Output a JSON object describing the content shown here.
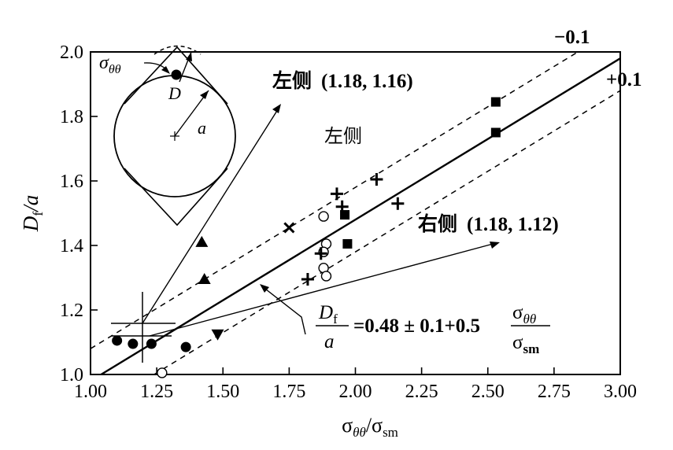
{
  "chart_data": {
    "type": "scatter",
    "xlabel": "σθθ/σsm",
    "ylabel": "Df/a",
    "xlim": [
      1.0,
      3.0
    ],
    "ylim": [
      1.0,
      2.0
    ],
    "x_ticks": [
      "1.00",
      "1.25",
      "1.50",
      "1.75",
      "2.00",
      "2.25",
      "2.50",
      "2.75",
      "3.00"
    ],
    "y_ticks": [
      "1.0",
      "1.2",
      "1.4",
      "1.6",
      "1.8",
      "2.0"
    ],
    "grid": false,
    "series": [
      {
        "marker": "filled-circle",
        "points": [
          [
            1.1,
            1.105
          ],
          [
            1.16,
            1.095
          ],
          [
            1.23,
            1.095
          ],
          [
            1.36,
            1.085
          ]
        ]
      },
      {
        "marker": "open-circle",
        "points": [
          [
            1.27,
            1.005
          ],
          [
            1.88,
            1.49
          ],
          [
            1.89,
            1.405
          ],
          [
            1.88,
            1.38
          ],
          [
            1.88,
            1.33
          ],
          [
            1.89,
            1.305
          ]
        ]
      },
      {
        "marker": "filled-triangle-up",
        "points": [
          [
            1.42,
            1.41
          ],
          [
            1.43,
            1.295
          ]
        ]
      },
      {
        "marker": "filled-triangle-down",
        "points": [
          [
            1.48,
            1.125
          ]
        ]
      },
      {
        "marker": "filled-square",
        "points": [
          [
            1.96,
            1.495
          ],
          [
            1.97,
            1.405
          ],
          [
            2.53,
            1.845
          ],
          [
            2.53,
            1.75
          ]
        ]
      },
      {
        "marker": "plus",
        "points": [
          [
            1.93,
            1.56
          ],
          [
            1.95,
            1.52
          ],
          [
            2.08,
            1.605
          ],
          [
            2.16,
            1.53
          ],
          [
            1.87,
            1.375
          ],
          [
            1.82,
            1.295
          ]
        ]
      },
      {
        "marker": "cross",
        "points": [
          [
            1.75,
            1.455
          ]
        ]
      }
    ],
    "fit_line": {
      "label": "Df/a = 0.48 ± 0.1 + 0.5 σθθ/σsm",
      "intercept": 0.48,
      "slope": 0.5,
      "band": 0.1
    },
    "mean_point": {
      "x": 1.19,
      "y": 1.14
    }
  },
  "annotations": {
    "band_upper": "−0.1",
    "band_lower": "+0.1",
    "left_side_label": "左侧",
    "left_side_coords": "(1.18, 1.16)",
    "left_side_note": "左侧",
    "right_side_label": "右侧",
    "right_side_coords": "(1.18, 1.12)",
    "eq_Df": "D",
    "eq_f_sub": "f",
    "eq_a": "a",
    "eq_middle": "=0.48 ± 0.1+0.5",
    "eq_sigma_num": "σ",
    "eq_theta_sub": "θθ",
    "eq_sigma_den": "σ",
    "eq_sm_sub": "sm"
  },
  "inset": {
    "sigma_label": "σ",
    "theta_sub": "θθ",
    "D_label": "D",
    "a_label": "a"
  },
  "axes": {
    "y_title_D": "D",
    "y_title_sub": "f",
    "y_title_a": "/a",
    "x_title_sigma1": "σ",
    "x_title_sub1": "θθ",
    "x_title_slash": "/σ",
    "x_title_sub2": "sm"
  }
}
